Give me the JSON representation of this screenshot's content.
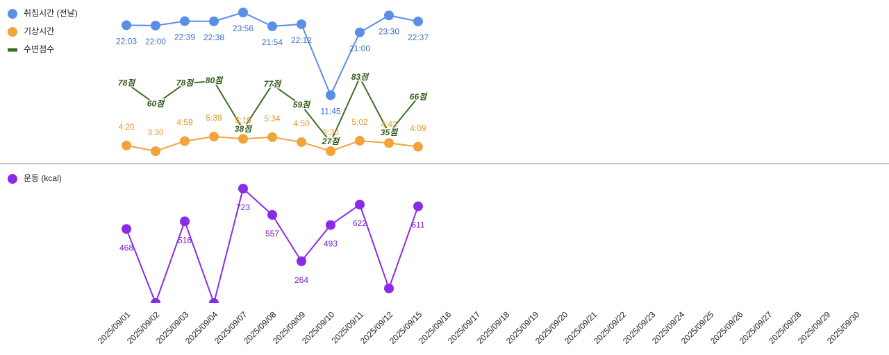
{
  "chart_data": [
    {
      "type": "line",
      "series": [
        {
          "name": "취침시간 (전날)",
          "color": "#5b8ee6",
          "label_color": "#3a6fc4",
          "markers": true,
          "values": [
            1323,
            1320,
            1359,
            1358,
            1436,
            1314,
            1332,
            705,
            1260,
            1410,
            1357,
            null,
            null,
            null,
            null,
            null,
            null,
            null,
            null,
            null,
            null,
            null,
            null,
            null,
            null,
            null
          ],
          "value_labels": [
            "22:03",
            "22:00",
            "22:39",
            "22:38",
            "23:56",
            "21:54",
            "22:12",
            "11:45",
            "21:00",
            "23:30",
            "22:37",
            null,
            null,
            null,
            null,
            null,
            null,
            null,
            null,
            null,
            null,
            null,
            null,
            null,
            null,
            null
          ]
        },
        {
          "name": "기상시간",
          "color": "#f2a33a",
          "label_color": "#e39a2a",
          "markers": true,
          "values": [
            260,
            210,
            299,
            339,
            319,
            334,
            290,
            210,
            302,
            282,
            249,
            null,
            null,
            null,
            null,
            null,
            null,
            null,
            null,
            null,
            null,
            null,
            null,
            null,
            null,
            null
          ],
          "value_labels": [
            "4:20",
            "3:30",
            "4:59",
            "5:39",
            "5:19",
            "5:34",
            "4:50",
            "3:30",
            "5:02",
            "4:42",
            "4:09",
            null,
            null,
            null,
            null,
            null,
            null,
            null,
            null,
            null,
            null,
            null,
            null,
            null,
            null,
            null
          ]
        },
        {
          "name": "수면점수",
          "color": "#3d6b22",
          "label_color": "#2f5a17",
          "markers": false,
          "axis": "y2",
          "values": [
            78,
            60,
            78,
            80,
            38,
            77,
            59,
            27,
            83,
            35,
            66,
            null,
            null,
            null,
            null,
            null,
            null,
            null,
            null,
            null,
            null,
            null,
            null,
            null,
            null,
            null
          ],
          "value_labels": [
            "78점",
            "60점",
            "78점",
            "80점",
            "38점",
            "77점",
            "59점",
            "27점",
            "83점",
            "35점",
            "66점",
            null,
            null,
            null,
            null,
            null,
            null,
            null,
            null,
            null,
            null,
            null,
            null,
            null,
            null,
            null
          ]
        }
      ]
    },
    {
      "type": "line",
      "categories": [
        "2025/09/01",
        "2025/09/02",
        "2025/09/03",
        "2025/09/04",
        "2025/09/07",
        "2025/09/08",
        "2025/09/09",
        "2025/09/10",
        "2025/09/11",
        "2025/09/12",
        "2025/09/15",
        "2025/09/16",
        "2025/09/17",
        "2025/09/18",
        "2025/09/19",
        "2025/09/20",
        "2025/09/21",
        "2025/09/22",
        "2025/09/23",
        "2025/09/24",
        "2025/09/25",
        "2025/09/26",
        "2025/09/27",
        "2025/09/28",
        "2025/09/29",
        "2025/09/30"
      ],
      "series": [
        {
          "name": "운동 (kcal)",
          "color": "#8a2be8",
          "label_color": "#7a1fd0",
          "markers": true,
          "values": [
            468,
            0,
            516,
            0,
            723,
            557,
            264,
            493,
            622,
            92,
            611,
            null,
            null,
            null,
            null,
            null,
            null,
            null,
            null,
            null,
            null,
            null,
            null,
            null,
            null,
            null
          ],
          "value_labels": [
            "468",
            null,
            "516",
            null,
            "723",
            "557",
            "264",
            "493",
            "622",
            null,
            "611",
            null,
            null,
            null,
            null,
            null,
            null,
            null,
            null,
            null,
            null,
            null,
            null,
            null,
            null,
            null
          ]
        }
      ]
    }
  ]
}
